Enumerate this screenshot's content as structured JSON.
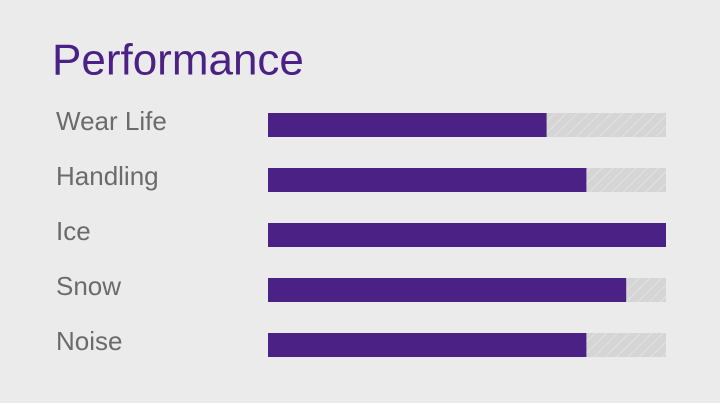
{
  "chart_data": {
    "type": "hbar",
    "title": "Performance",
    "categories": [
      "Wear Life",
      "Handling",
      "Ice",
      "Snow",
      "Noise"
    ],
    "values": [
      7,
      8,
      10,
      9,
      8
    ],
    "xlim": [
      0,
      10
    ],
    "color": "#4b2185"
  }
}
